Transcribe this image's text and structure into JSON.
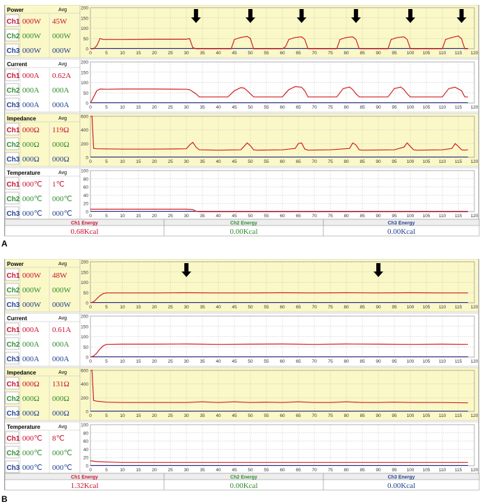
{
  "panels": [
    {
      "letter": "A",
      "sections": [
        {
          "key": "power",
          "title": "Power",
          "avg_label": "Avg",
          "rows": [
            {
              "ch": "Ch1",
              "value": "000W",
              "avg": "45W"
            },
            {
              "ch": "Ch2",
              "value": "000W",
              "avg": "000W"
            },
            {
              "ch": "Ch3",
              "value": "000W",
              "avg": "000W"
            }
          ]
        },
        {
          "key": "current",
          "title": "Current",
          "avg_label": "Avg",
          "rows": [
            {
              "ch": "Ch1",
              "value": "000A",
              "avg": "0.62A"
            },
            {
              "ch": "Ch2",
              "value": "000A",
              "avg": "000A"
            },
            {
              "ch": "Ch3",
              "value": "000A",
              "avg": "000A"
            }
          ]
        },
        {
          "key": "impedance",
          "title": "Impedance",
          "avg_label": "Avg",
          "rows": [
            {
              "ch": "Ch1",
              "value": "000Ω",
              "avg": "119Ω"
            },
            {
              "ch": "Ch2",
              "value": "000Ω",
              "avg": "000Ω"
            },
            {
              "ch": "Ch3",
              "value": "000Ω",
              "avg": "000Ω"
            }
          ]
        },
        {
          "key": "temperature",
          "title": "Temperature",
          "avg_label": "Avg",
          "rows": [
            {
              "ch": "Ch1",
              "value": "000℃",
              "avg": "1℃"
            },
            {
              "ch": "Ch2",
              "value": "000℃",
              "avg": "000℃"
            },
            {
              "ch": "Ch3",
              "value": "000℃",
              "avg": "000℃"
            }
          ]
        }
      ],
      "energy": [
        {
          "label": "Ch1 Energy",
          "value": "0.68Kcal"
        },
        {
          "label": "Ch2 Energy",
          "value": "0.00Kcal"
        },
        {
          "label": "Ch3 Energy",
          "value": "0.00Kcal"
        }
      ]
    },
    {
      "letter": "B",
      "sections": [
        {
          "key": "power",
          "title": "Power",
          "avg_label": "Avg",
          "rows": [
            {
              "ch": "Ch1",
              "value": "000W",
              "avg": "48W"
            },
            {
              "ch": "Ch2",
              "value": "000W",
              "avg": "000W"
            },
            {
              "ch": "Ch3",
              "value": "000W",
              "avg": "000W"
            }
          ]
        },
        {
          "key": "current",
          "title": "Current",
          "avg_label": "Avg",
          "rows": [
            {
              "ch": "Ch1",
              "value": "000A",
              "avg": "0.61A"
            },
            {
              "ch": "Ch2",
              "value": "000A",
              "avg": "000A"
            },
            {
              "ch": "Ch3",
              "value": "000A",
              "avg": "000A"
            }
          ]
        },
        {
          "key": "impedance",
          "title": "Impedance",
          "avg_label": "Avg",
          "rows": [
            {
              "ch": "Ch1",
              "value": "000Ω",
              "avg": "131Ω"
            },
            {
              "ch": "Ch2",
              "value": "000Ω",
              "avg": "000Ω"
            },
            {
              "ch": "Ch3",
              "value": "000Ω",
              "avg": "000Ω"
            }
          ]
        },
        {
          "key": "temperature",
          "title": "Temperature",
          "avg_label": "Avg",
          "rows": [
            {
              "ch": "Ch1",
              "value": "000℃",
              "avg": "8℃"
            },
            {
              "ch": "Ch2",
              "value": "000℃",
              "avg": "000℃"
            },
            {
              "ch": "Ch3",
              "value": "000℃",
              "avg": "000℃"
            }
          ]
        }
      ],
      "energy": [
        {
          "label": "Ch1 Energy",
          "value": "1.32Kcal"
        },
        {
          "label": "Ch2 Energy",
          "value": "0.00Kcal"
        },
        {
          "label": "Ch3 Energy",
          "value": "0.00Kcal"
        }
      ]
    }
  ],
  "colors": {
    "ch1": "#c8102e",
    "ch2": "#2e8b2e",
    "ch3": "#1f3f8f",
    "highlight": "#fbf8c8",
    "plot_bg": "#ffffff",
    "trace": "#d21e1e",
    "baseline": "#2a2a8a"
  },
  "chart_data": [
    {
      "type": "line",
      "panel": "A",
      "metric": "power",
      "xlim": [
        0,
        120
      ],
      "ylim": [
        0,
        200
      ],
      "xticks": [
        0,
        5,
        10,
        15,
        20,
        25,
        30,
        35,
        40,
        45,
        50,
        55,
        60,
        65,
        70,
        75,
        80,
        85,
        90,
        95,
        100,
        105,
        110,
        115,
        120
      ],
      "yticks": [
        0,
        50,
        100,
        150,
        200
      ],
      "grid": true,
      "arrows_at_x": [
        33,
        50,
        66,
        83,
        100,
        116
      ],
      "series": [
        {
          "x": [
            0,
            1,
            2,
            3,
            4,
            5,
            10,
            20,
            30,
            31,
            32,
            33,
            44,
            45,
            47,
            49,
            50,
            51,
            60,
            61,
            62,
            64,
            66,
            67,
            68,
            77,
            78,
            80,
            82,
            83,
            84,
            93,
            94,
            96,
            98,
            99,
            100,
            110,
            111,
            113,
            115,
            116,
            117,
            118
          ],
          "y": [
            0,
            0,
            15,
            50,
            45,
            45,
            45,
            46,
            46,
            50,
            5,
            0,
            0,
            45,
            55,
            60,
            50,
            0,
            0,
            10,
            45,
            55,
            58,
            45,
            0,
            0,
            45,
            55,
            58,
            45,
            0,
            0,
            45,
            55,
            58,
            45,
            0,
            0,
            45,
            55,
            62,
            48,
            0,
            0
          ]
        }
      ]
    },
    {
      "type": "line",
      "panel": "A",
      "metric": "current",
      "xlim": [
        0,
        120
      ],
      "ylim": [
        0,
        200
      ],
      "xticks": [
        0,
        5,
        10,
        15,
        20,
        25,
        30,
        35,
        40,
        45,
        50,
        55,
        60,
        65,
        70,
        75,
        80,
        85,
        90,
        95,
        100,
        105,
        110,
        115,
        120
      ],
      "yticks": [
        0,
        50,
        100,
        150,
        200
      ],
      "grid": true,
      "series": [
        {
          "x": [
            0,
            1,
            2,
            3,
            5,
            10,
            20,
            30,
            31,
            32,
            33,
            34,
            43,
            45,
            47,
            48,
            49,
            50,
            51,
            60,
            62,
            64,
            66,
            67,
            68,
            77,
            79,
            81,
            82,
            83,
            84,
            93,
            95,
            97,
            98,
            99,
            100,
            110,
            112,
            114,
            116,
            117,
            118
          ],
          "y": [
            0,
            30,
            60,
            68,
            67,
            68,
            68,
            67,
            65,
            55,
            45,
            30,
            30,
            60,
            75,
            73,
            60,
            45,
            30,
            30,
            65,
            80,
            77,
            60,
            30,
            30,
            70,
            78,
            65,
            45,
            30,
            30,
            70,
            78,
            65,
            45,
            30,
            30,
            70,
            77,
            60,
            30,
            30
          ]
        }
      ]
    },
    {
      "type": "line",
      "panel": "A",
      "metric": "impedance",
      "xlim": [
        0,
        120
      ],
      "ylim": [
        0,
        600
      ],
      "xticks": [
        0,
        5,
        10,
        15,
        20,
        25,
        30,
        35,
        40,
        45,
        50,
        55,
        60,
        65,
        70,
        75,
        80,
        85,
        90,
        95,
        100,
        105,
        110,
        115,
        120
      ],
      "yticks": [
        0,
        200,
        400,
        600
      ],
      "grid": true,
      "series": [
        {
          "x": [
            0,
            0.5,
            1,
            2,
            10,
            20,
            30,
            31,
            32,
            33,
            34,
            40,
            47,
            48,
            49,
            50,
            51,
            52,
            60,
            64,
            65,
            66,
            67,
            68,
            75,
            81,
            82,
            83,
            84,
            85,
            95,
            98,
            99,
            100,
            101,
            102,
            110,
            113,
            114,
            115,
            116,
            117,
            118
          ],
          "y": [
            600,
            600,
            130,
            125,
            120,
            120,
            125,
            180,
            220,
            150,
            110,
            105,
            110,
            160,
            210,
            170,
            110,
            105,
            110,
            130,
            200,
            210,
            120,
            105,
            110,
            130,
            210,
            180,
            110,
            105,
            110,
            150,
            210,
            160,
            110,
            105,
            110,
            130,
            200,
            160,
            110,
            105,
            110
          ]
        }
      ]
    },
    {
      "type": "line",
      "panel": "A",
      "metric": "temperature",
      "xlim": [
        0,
        120
      ],
      "ylim": [
        0,
        100
      ],
      "xticks": [
        0,
        5,
        10,
        15,
        20,
        25,
        30,
        35,
        40,
        45,
        50,
        55,
        60,
        65,
        70,
        75,
        80,
        85,
        90,
        95,
        100,
        105,
        110,
        115,
        120
      ],
      "yticks": [
        0,
        20,
        40,
        60,
        80,
        100
      ],
      "grid": true,
      "series": [
        {
          "x": [
            0,
            10,
            20,
            30,
            32,
            33,
            34,
            118
          ],
          "y": [
            6,
            6,
            6,
            6,
            5,
            1,
            0,
            0
          ]
        }
      ]
    },
    {
      "type": "line",
      "panel": "B",
      "metric": "power",
      "xlim": [
        0,
        120
      ],
      "ylim": [
        0,
        200
      ],
      "xticks": [
        0,
        5,
        10,
        15,
        20,
        25,
        30,
        35,
        40,
        45,
        50,
        55,
        60,
        65,
        70,
        75,
        80,
        85,
        90,
        95,
        100,
        105,
        110,
        115,
        120
      ],
      "yticks": [
        0,
        50,
        100,
        150,
        200
      ],
      "grid": true,
      "arrows_at_x": [
        30,
        90
      ],
      "series": [
        {
          "x": [
            0,
            1,
            2,
            3,
            4,
            5,
            10,
            20,
            30,
            40,
            50,
            60,
            70,
            80,
            90,
            100,
            110,
            118
          ],
          "y": [
            0,
            5,
            20,
            35,
            45,
            48,
            48,
            48,
            49,
            48,
            48,
            49,
            48,
            49,
            48,
            49,
            48,
            48
          ]
        }
      ]
    },
    {
      "type": "line",
      "panel": "B",
      "metric": "current",
      "xlim": [
        0,
        120
      ],
      "ylim": [
        0,
        200
      ],
      "xticks": [
        0,
        5,
        10,
        15,
        20,
        25,
        30,
        35,
        40,
        45,
        50,
        55,
        60,
        65,
        70,
        75,
        80,
        85,
        90,
        95,
        100,
        105,
        110,
        115,
        120
      ],
      "yticks": [
        0,
        50,
        100,
        150,
        200
      ],
      "grid": true,
      "series": [
        {
          "x": [
            0,
            1,
            2,
            3,
            4,
            5,
            10,
            20,
            30,
            40,
            50,
            60,
            70,
            80,
            90,
            100,
            110,
            118
          ],
          "y": [
            0,
            5,
            20,
            40,
            55,
            62,
            63,
            63,
            64,
            62,
            63,
            64,
            62,
            64,
            63,
            62,
            63,
            62
          ]
        }
      ]
    },
    {
      "type": "line",
      "panel": "B",
      "metric": "impedance",
      "xlim": [
        0,
        120
      ],
      "ylim": [
        0,
        600
      ],
      "xticks": [
        0,
        5,
        10,
        15,
        20,
        25,
        30,
        35,
        40,
        45,
        50,
        55,
        60,
        65,
        70,
        75,
        80,
        85,
        90,
        95,
        100,
        105,
        110,
        115,
        120
      ],
      "yticks": [
        0,
        200,
        400,
        600
      ],
      "grid": true,
      "series": [
        {
          "x": [
            0,
            0.5,
            1,
            2,
            5,
            10,
            20,
            30,
            35,
            40,
            45,
            50,
            55,
            60,
            65,
            70,
            75,
            80,
            85,
            90,
            95,
            100,
            105,
            110,
            118
          ],
          "y": [
            600,
            600,
            160,
            150,
            135,
            130,
            130,
            130,
            140,
            130,
            140,
            130,
            135,
            130,
            140,
            130,
            130,
            140,
            130,
            130,
            135,
            130,
            130,
            130,
            125
          ]
        }
      ]
    },
    {
      "type": "line",
      "panel": "B",
      "metric": "temperature",
      "xlim": [
        0,
        120
      ],
      "ylim": [
        0,
        100
      ],
      "xticks": [
        0,
        5,
        10,
        15,
        20,
        25,
        30,
        35,
        40,
        45,
        50,
        55,
        60,
        65,
        70,
        75,
        80,
        85,
        90,
        95,
        100,
        105,
        110,
        115,
        120
      ],
      "yticks": [
        0,
        20,
        40,
        60,
        80,
        100
      ],
      "grid": true,
      "series": [
        {
          "x": [
            0,
            2,
            5,
            10,
            20,
            40,
            60,
            80,
            100,
            118
          ],
          "y": [
            12,
            10,
            9,
            8,
            8,
            8,
            8,
            8,
            8,
            8
          ]
        }
      ]
    }
  ]
}
